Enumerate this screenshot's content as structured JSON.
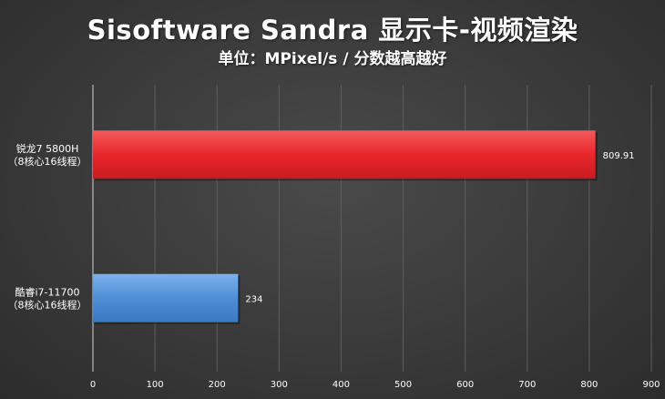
{
  "chart_data": {
    "type": "bar",
    "orientation": "horizontal",
    "title": "Sisoftware Sandra 显示卡-视频渲染",
    "subtitle": "单位：MPixel/s / 分数越高越好",
    "categories": [
      [
        "锐龙7 5800H",
        "（8核心16线程）"
      ],
      [
        "酷睿i7-11700",
        "（8核心16线程）"
      ]
    ],
    "values": [
      809.91,
      234
    ],
    "value_labels": [
      "809.91",
      "234"
    ],
    "bar_colors": [
      "#e8262b",
      "#4f8fd6"
    ],
    "xlim": [
      0,
      900
    ],
    "xticks": [
      "0",
      "100",
      "200",
      "300",
      "400",
      "500",
      "600",
      "700",
      "800",
      "900"
    ],
    "grid": true
  }
}
